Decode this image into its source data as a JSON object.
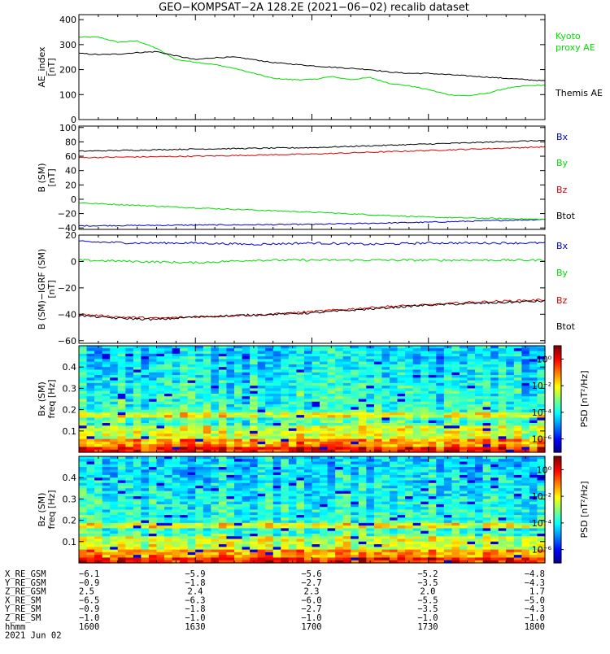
{
  "figure": {
    "title": "GEO−KOMPSAT−2A 128.2E (2021−06−02) recalib dataset"
  },
  "chart_data": [
    {
      "id": "ae",
      "type": "line",
      "ylabel_lines": [
        "AE_index",
        "[nT]"
      ],
      "ylim": [
        0,
        420
      ],
      "yticks": [
        0,
        100,
        200,
        300,
        400
      ],
      "x_range": [
        0,
        120
      ],
      "series": [
        {
          "name": "Kyoto proxy AE",
          "legend_lines": [
            "Kyoto",
            "proxy AE"
          ],
          "color": "#00dd00",
          "x": [
            0,
            5,
            10,
            15,
            20,
            25,
            30,
            35,
            40,
            45,
            50,
            55,
            60,
            65,
            70,
            75,
            80,
            85,
            90,
            95,
            100,
            105,
            110,
            115,
            120
          ],
          "y": [
            330,
            330,
            310,
            315,
            285,
            240,
            230,
            220,
            205,
            185,
            165,
            160,
            160,
            172,
            160,
            168,
            145,
            135,
            120,
            100,
            95,
            105,
            125,
            135,
            138
          ]
        },
        {
          "name": "Themis AE",
          "legend_lines": [
            "Themis AE"
          ],
          "color": "#000000",
          "x": [
            0,
            5,
            10,
            15,
            20,
            25,
            30,
            35,
            40,
            45,
            50,
            55,
            60,
            65,
            70,
            75,
            80,
            85,
            90,
            95,
            100,
            105,
            110,
            115,
            120
          ],
          "y": [
            265,
            260,
            262,
            268,
            272,
            255,
            240,
            248,
            250,
            240,
            228,
            222,
            215,
            210,
            205,
            200,
            190,
            185,
            185,
            180,
            175,
            170,
            165,
            160,
            155
          ]
        }
      ]
    },
    {
      "id": "b",
      "type": "line",
      "ylabel_lines": [
        "B (SM)",
        "[nT]"
      ],
      "ylim": [
        -42,
        102
      ],
      "yticks": [
        -40,
        -20,
        0,
        20,
        40,
        60,
        80,
        100
      ],
      "x_range": [
        0,
        120
      ],
      "series": [
        {
          "name": "Bx",
          "color": "#0000cc",
          "x": [
            0,
            30,
            60,
            90,
            120
          ],
          "y": [
            -37,
            -36,
            -35,
            -32,
            -28
          ]
        },
        {
          "name": "By",
          "color": "#00dd00",
          "x": [
            0,
            30,
            60,
            90,
            120
          ],
          "y": [
            -5,
            -12,
            -18,
            -25,
            -28
          ]
        },
        {
          "name": "Bz",
          "color": "#dd0000",
          "x": [
            0,
            30,
            60,
            90,
            120
          ],
          "y": [
            58,
            60,
            63,
            68,
            73
          ]
        },
        {
          "name": "Btot",
          "color": "#000000",
          "x": [
            0,
            30,
            60,
            90,
            120
          ],
          "y": [
            67,
            70,
            72,
            77,
            82
          ]
        }
      ]
    },
    {
      "id": "db",
      "type": "line",
      "ylabel_lines": [
        "B (SM)−IGRF (SM)",
        "[nT]"
      ],
      "ylim": [
        -62,
        20
      ],
      "yticks": [
        -60,
        -40,
        -20,
        0,
        20
      ],
      "x_range": [
        0,
        120
      ],
      "series": [
        {
          "name": "Bx",
          "color": "#0000cc",
          "x": [
            0,
            15,
            30,
            45,
            60,
            75,
            90,
            105,
            120
          ],
          "y": [
            15,
            14,
            14,
            13,
            14,
            13,
            14,
            14,
            14
          ]
        },
        {
          "name": "By",
          "color": "#00dd00",
          "x": [
            0,
            15,
            30,
            45,
            60,
            75,
            90,
            105,
            120
          ],
          "y": [
            1,
            0,
            -1,
            1,
            1,
            1,
            1,
            1,
            1
          ]
        },
        {
          "name": "Bz",
          "color": "#dd0000",
          "x": [
            0,
            10,
            20,
            30,
            40,
            50,
            60,
            70,
            80,
            90,
            100,
            110,
            120
          ],
          "y": [
            -40,
            -42,
            -43,
            -42,
            -41,
            -40,
            -38,
            -36,
            -34,
            -33,
            -31,
            -30,
            -29
          ]
        },
        {
          "name": "Btot",
          "color": "#000000",
          "x": [
            0,
            10,
            20,
            30,
            40,
            50,
            60,
            70,
            80,
            90,
            100,
            110,
            120
          ],
          "y": [
            -41,
            -43,
            -44,
            -42,
            -41,
            -40,
            -39,
            -37,
            -35,
            -33,
            -32,
            -31,
            -30
          ]
        }
      ]
    },
    {
      "id": "bx-psd",
      "type": "heatmap",
      "ylabel_lines": [
        "Bx (SM)",
        "freq [Hz]"
      ],
      "ylim": [
        0,
        0.5
      ],
      "yticks": [
        0.1,
        0.2,
        0.3,
        0.4
      ],
      "x_range": [
        0,
        120
      ],
      "colorbar_label": "PSD [nT²/Hz]",
      "colorbar_ticks": [
        "10⁰",
        "10⁻²",
        "10⁻⁴",
        "10⁻⁶"
      ],
      "colorbar_log_range": [
        -7,
        1
      ]
    },
    {
      "id": "bz-psd",
      "type": "heatmap",
      "ylabel_lines": [
        "Bz (SM)",
        "freq [Hz]"
      ],
      "ylim": [
        0,
        0.5
      ],
      "yticks": [
        0.1,
        0.2,
        0.3,
        0.4
      ],
      "x_range": [
        0,
        120
      ],
      "colorbar_label": "PSD [nT²/Hz]",
      "colorbar_ticks": [
        "10⁰",
        "10⁻²",
        "10⁻⁴",
        "10⁻⁶"
      ],
      "colorbar_log_range": [
        -7,
        1
      ]
    }
  ],
  "ephemeris": {
    "rows": [
      {
        "label": "X_RE_GSM",
        "values": [
          "−6.1",
          "−5.9",
          "−5.6",
          "−5.2",
          "−4.8"
        ]
      },
      {
        "label": "Y_RE_GSM",
        "values": [
          "−0.9",
          "−1.8",
          "−2.7",
          "−3.5",
          "−4.3"
        ]
      },
      {
        "label": "Z_RE_GSM",
        "values": [
          "2.5",
          "2.4",
          "2.3",
          "2.0",
          "1.7"
        ]
      },
      {
        "label": "X_RE_SM",
        "values": [
          "−6.5",
          "−6.3",
          "−6.0",
          "−5.5",
          "−5.0"
        ]
      },
      {
        "label": "Y_RE_SM",
        "values": [
          "−0.9",
          "−1.8",
          "−2.7",
          "−3.5",
          "−4.3"
        ]
      },
      {
        "label": "Z_RE_SM",
        "values": [
          "−1.0",
          "−1.0",
          "−1.0",
          "−1.0",
          "−1.0"
        ]
      },
      {
        "label": "hhmm",
        "values": [
          "1600",
          "1630",
          "1700",
          "1730",
          "1800"
        ]
      }
    ],
    "date": "2021 Jun 02"
  }
}
